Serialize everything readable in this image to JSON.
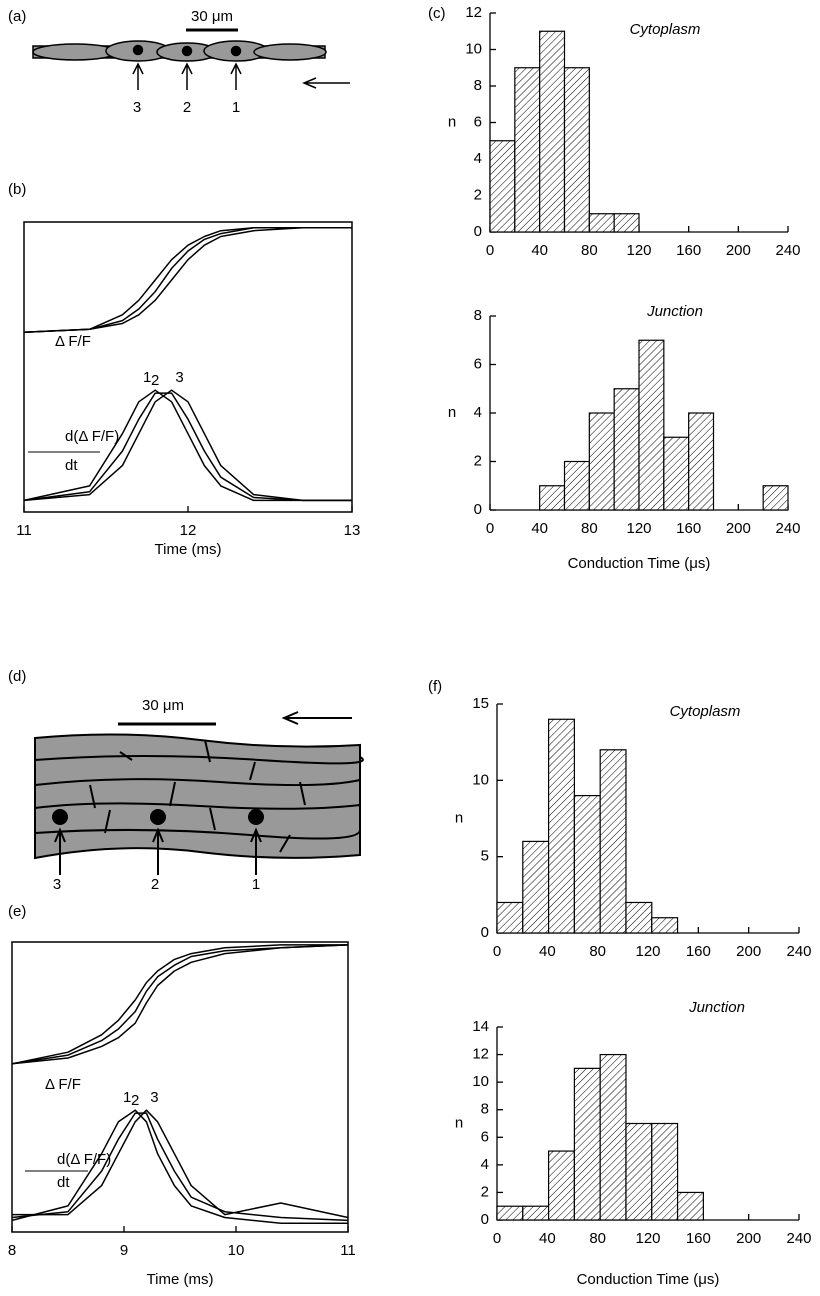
{
  "panel_labels": [
    "(a)",
    "(b)",
    "(c)",
    "(d)",
    "(e)",
    "(f)"
  ],
  "diagram_a": {
    "scale_label": "30 μm",
    "markers": [
      "3",
      "2",
      "1"
    ]
  },
  "diagram_d": {
    "scale_label": "30 μm",
    "markers": [
      "3",
      "2",
      "1"
    ]
  },
  "chart_data": [
    {
      "type": "line",
      "xlabel": "Time (ms)",
      "xlim": [
        11,
        13
      ],
      "xticks": [
        11,
        12,
        13
      ],
      "ylim": [
        0,
        1
      ],
      "annotations": [
        "Δ F/F",
        "d(Δ F/F)",
        "dt"
      ],
      "x": [
        11,
        11.4,
        11.6,
        11.7,
        11.8,
        11.9,
        12.0,
        12.1,
        12.2,
        12.4,
        12.7,
        13
      ],
      "series": [
        {
          "color": "#000000",
          "values": [
            0.62,
            0.63,
            0.68,
            0.73,
            0.8,
            0.87,
            0.92,
            0.95,
            0.97,
            0.98,
            0.98,
            0.98
          ]
        },
        {
          "color": "#000000",
          "values": [
            0.62,
            0.63,
            0.66,
            0.7,
            0.76,
            0.84,
            0.9,
            0.94,
            0.96,
            0.98,
            0.98,
            0.98
          ]
        },
        {
          "color": "#000000",
          "values": [
            0.62,
            0.63,
            0.65,
            0.68,
            0.73,
            0.8,
            0.87,
            0.92,
            0.95,
            0.97,
            0.98,
            0.98
          ]
        },
        {
          "name": "1",
          "color": "#000000",
          "values": [
            0.04,
            0.09,
            0.27,
            0.38,
            0.42,
            0.38,
            0.27,
            0.16,
            0.09,
            0.04,
            0.04,
            0.04
          ]
        },
        {
          "name": "2",
          "color": "#000000",
          "values": [
            0.04,
            0.07,
            0.21,
            0.32,
            0.41,
            0.41,
            0.32,
            0.21,
            0.12,
            0.05,
            0.04,
            0.04
          ]
        },
        {
          "name": "3",
          "color": "#000000",
          "values": [
            0.04,
            0.06,
            0.16,
            0.27,
            0.38,
            0.42,
            0.38,
            0.27,
            0.16,
            0.06,
            0.04,
            0.04
          ]
        }
      ]
    },
    {
      "type": "histogram",
      "title": "Cytoplasm",
      "ylabel": "n",
      "color": "#ffffff",
      "hatch": true,
      "bins": [
        0,
        20,
        40,
        60,
        80,
        100,
        120
      ],
      "values": [
        5,
        9,
        11,
        9,
        1,
        1
      ],
      "xlim": [
        0,
        240
      ],
      "xticks": [
        0,
        40,
        80,
        120,
        160,
        200,
        240
      ],
      "ylim": [
        0,
        12
      ],
      "yticks": [
        0,
        2,
        4,
        6,
        8,
        10,
        12
      ]
    },
    {
      "type": "histogram",
      "title": "Junction",
      "ylabel": "n",
      "xlabel": "Conduction Time (μs)",
      "color": "#ffffff",
      "hatch": true,
      "bins": [
        40,
        60,
        80,
        100,
        120,
        140,
        160,
        180,
        200,
        220,
        240
      ],
      "values": [
        1,
        2,
        4,
        5,
        7,
        3,
        4,
        0,
        0,
        1
      ],
      "xlim": [
        0,
        240
      ],
      "xticks": [
        0,
        40,
        80,
        120,
        160,
        200,
        240
      ],
      "ylim": [
        0,
        8
      ],
      "yticks": [
        0,
        2,
        4,
        6,
        8
      ]
    },
    {
      "type": "line",
      "xlabel": "Time (ms)",
      "xlim": [
        8,
        11
      ],
      "xticks": [
        8,
        9,
        10,
        11
      ],
      "ylim": [
        0,
        1
      ],
      "annotations": [
        "Δ F/F",
        "d(Δ F/F)",
        "dt"
      ],
      "x": [
        8,
        8.5,
        8.8,
        8.95,
        9.1,
        9.2,
        9.3,
        9.45,
        9.6,
        9.9,
        10.4,
        11
      ],
      "series": [
        {
          "color": "#000000",
          "values": [
            0.58,
            0.62,
            0.68,
            0.73,
            0.8,
            0.86,
            0.9,
            0.94,
            0.96,
            0.98,
            0.99,
            0.99
          ]
        },
        {
          "color": "#000000",
          "values": [
            0.58,
            0.61,
            0.66,
            0.7,
            0.76,
            0.83,
            0.88,
            0.92,
            0.95,
            0.97,
            0.98,
            0.99
          ]
        },
        {
          "color": "#000000",
          "values": [
            0.58,
            0.6,
            0.64,
            0.67,
            0.72,
            0.79,
            0.85,
            0.9,
            0.93,
            0.96,
            0.98,
            0.99
          ]
        },
        {
          "name": "1",
          "color": "#000000",
          "values": [
            0.04,
            0.09,
            0.27,
            0.38,
            0.42,
            0.38,
            0.27,
            0.16,
            0.09,
            0.05,
            0.03,
            0.03
          ]
        },
        {
          "name": "2",
          "color": "#000000",
          "values": [
            0.05,
            0.07,
            0.21,
            0.32,
            0.41,
            0.41,
            0.32,
            0.21,
            0.12,
            0.07,
            0.05,
            0.04
          ]
        },
        {
          "name": "3",
          "color": "#000000",
          "values": [
            0.06,
            0.06,
            0.16,
            0.27,
            0.38,
            0.42,
            0.38,
            0.27,
            0.16,
            0.06,
            0.1,
            0.05
          ]
        }
      ]
    },
    {
      "type": "histogram",
      "title": "Cytoplasm",
      "ylabel": "n",
      "color": "#ffffff",
      "hatch": true,
      "bins": [
        0,
        20.5,
        41,
        61.5,
        82,
        102.5,
        123,
        143.5
      ],
      "values": [
        2,
        6,
        14,
        9,
        12,
        2,
        1
      ],
      "xlim": [
        0,
        240
      ],
      "xticks": [
        0,
        40,
        80,
        120,
        160,
        200,
        240
      ],
      "ylim": [
        0,
        15
      ],
      "yticks": [
        0,
        5,
        10,
        15
      ]
    },
    {
      "type": "histogram",
      "title": "Junction",
      "ylabel": "n",
      "xlabel": "Conduction Time (μs)",
      "color": "#ffffff",
      "hatch": true,
      "bins": [
        0,
        20.5,
        41,
        61.5,
        82,
        102.5,
        123,
        143.5,
        164
      ],
      "values": [
        1,
        1,
        5,
        11,
        12,
        7,
        7,
        2
      ],
      "xlim": [
        0,
        240
      ],
      "xticks": [
        0,
        40,
        80,
        120,
        160,
        200,
        240
      ],
      "ylim": [
        0,
        14
      ],
      "yticks": [
        0,
        2,
        4,
        6,
        8,
        10,
        12,
        14
      ]
    }
  ]
}
